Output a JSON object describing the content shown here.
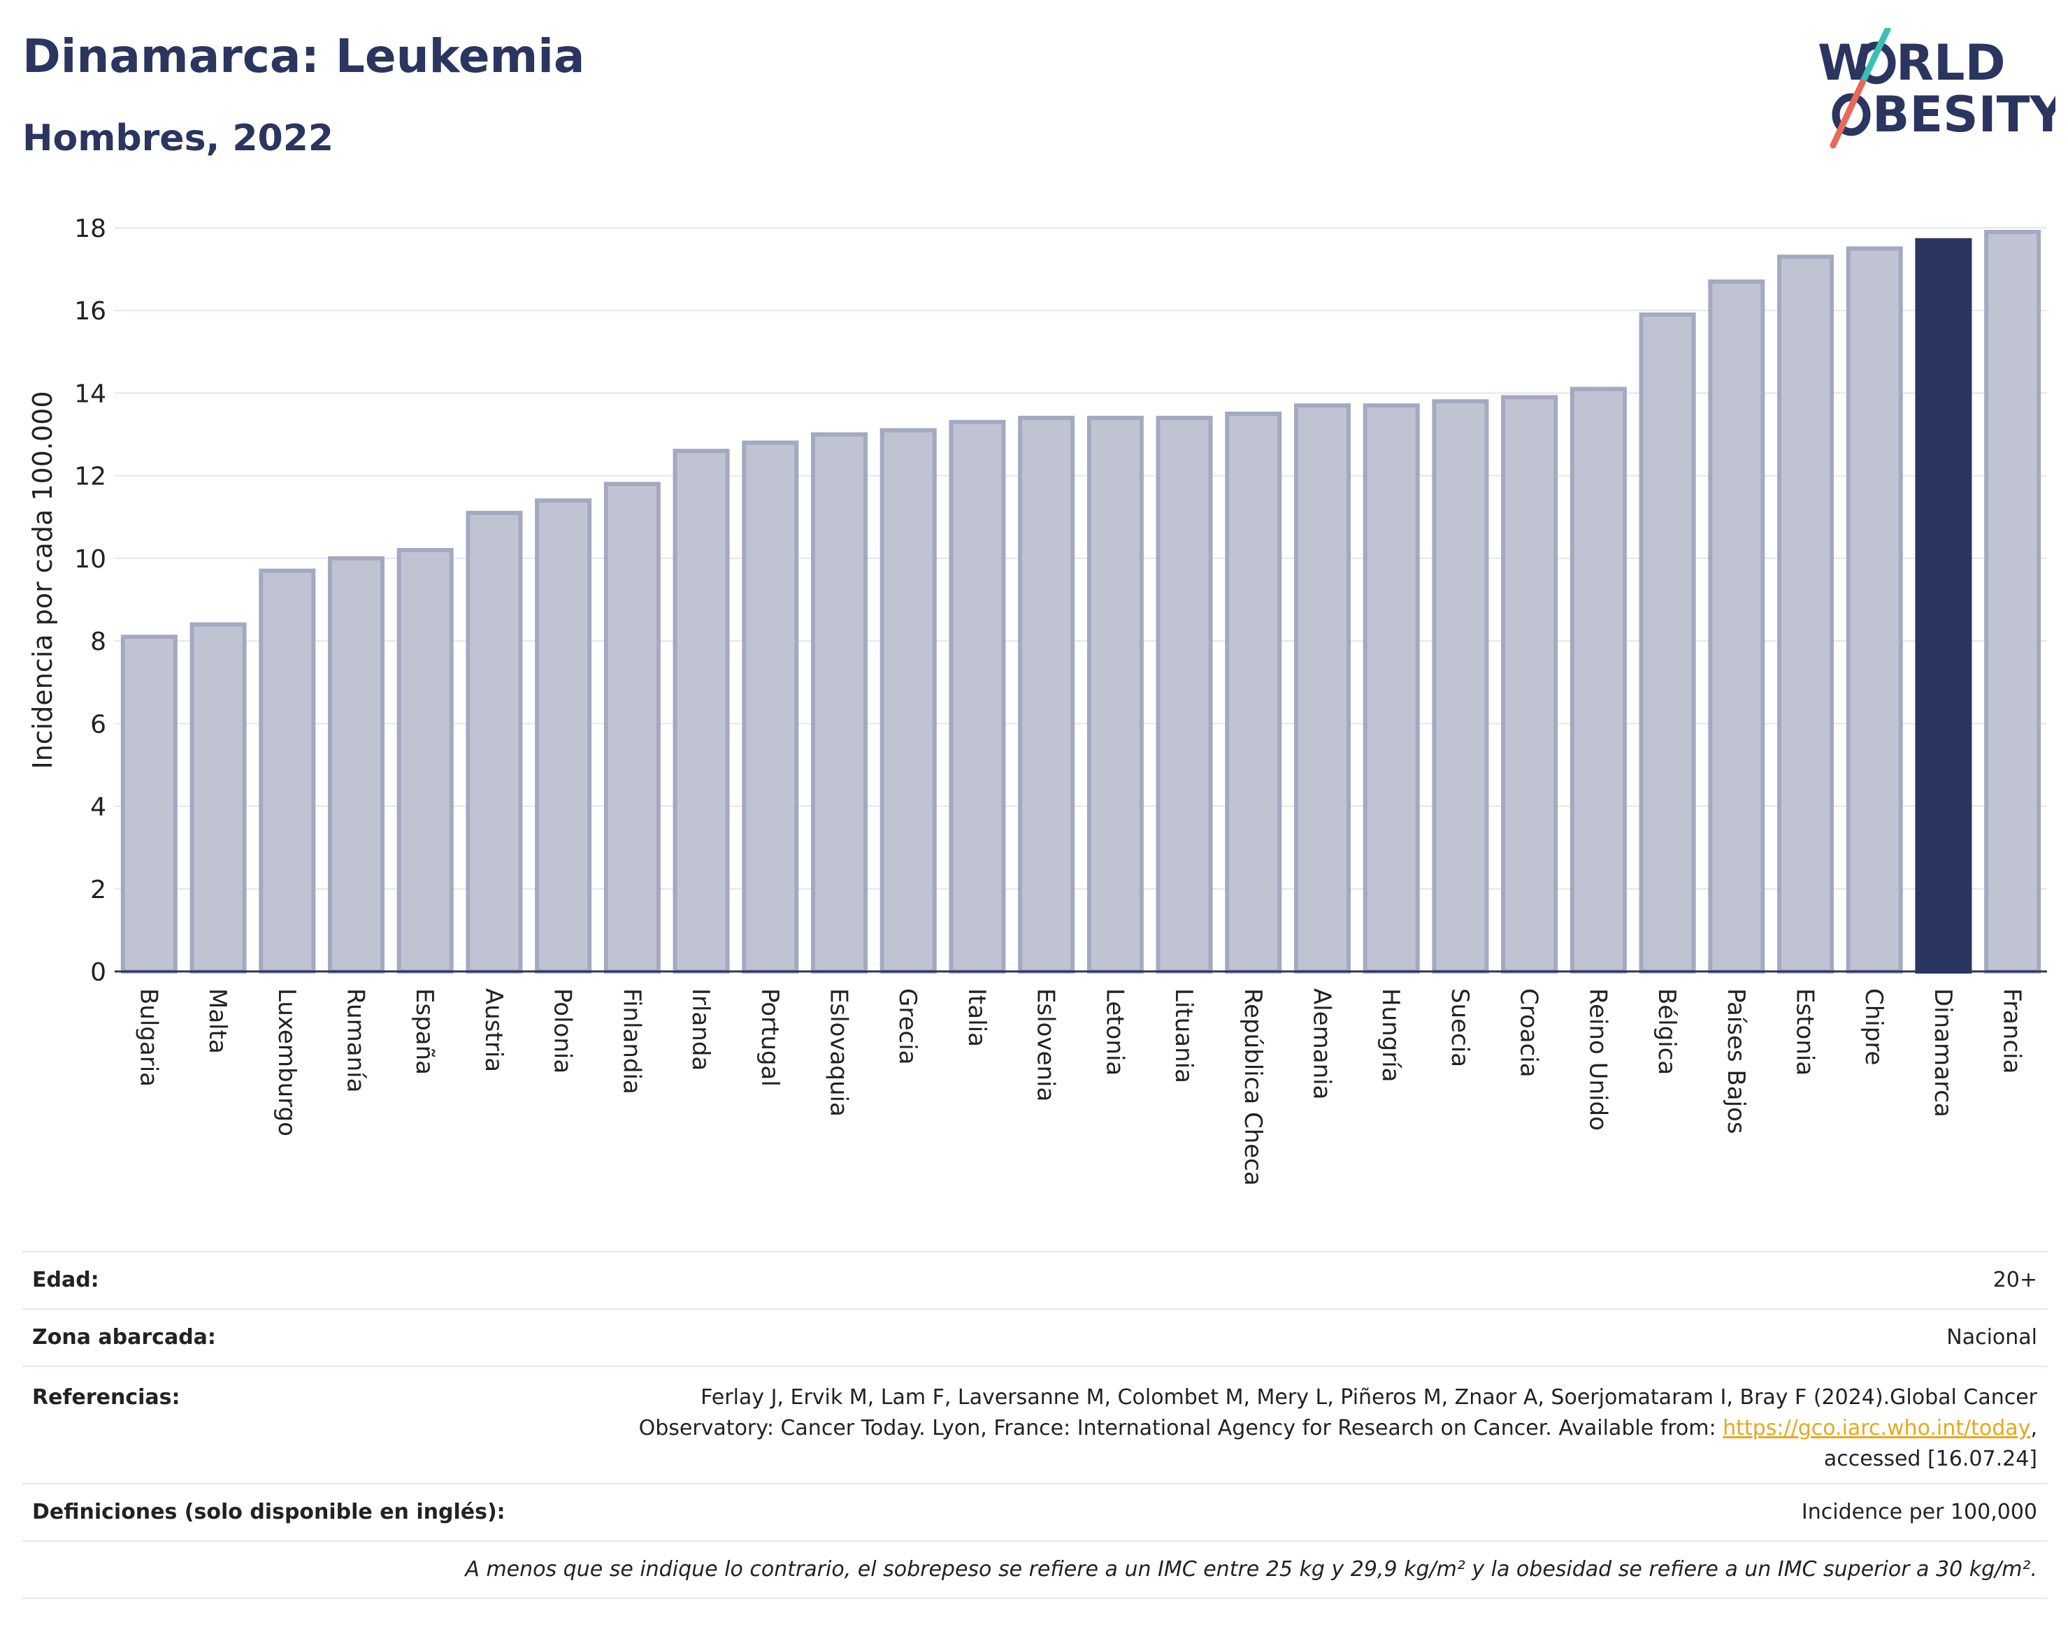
{
  "header": {
    "title": "Dinamarca: Leukemia",
    "subtitle": "Hombres, 2022"
  },
  "logo": {
    "line1": "W",
    "line1b": "RLD",
    "line2b": "BESITY",
    "colors": {
      "navy": "#2a3560",
      "teal": "#3bbfb5",
      "coral": "#e8685a"
    }
  },
  "colors": {
    "bar": "#c0c4d2",
    "bar_border": "#a3a9c0",
    "highlight": "#2a3560",
    "grid": "#e4e6ee",
    "axis_text": "#222222"
  },
  "chart_data": {
    "type": "bar",
    "ylabel": "Incidencia por cada 100.000",
    "ylim": [
      0,
      18
    ],
    "yticks": [
      0,
      2,
      4,
      6,
      8,
      10,
      12,
      14,
      16,
      18
    ],
    "grid": true,
    "highlight": "Dinamarca",
    "categories": [
      "Bulgaria",
      "Malta",
      "Luxemburgo",
      "Rumanía",
      "España",
      "Austria",
      "Polonia",
      "Finlandia",
      "Irlanda",
      "Portugal",
      "Eslovaquia",
      "Grecia",
      "Italia",
      "Eslovenia",
      "Letonia",
      "Lituania",
      "República Checa",
      "Alemania",
      "Hungría",
      "Suecia",
      "Croacia",
      "Reino Unido",
      "Bélgica",
      "Países Bajos",
      "Estonia",
      "Chipre",
      "Dinamarca",
      "Francia"
    ],
    "values": [
      8.1,
      8.4,
      9.7,
      10.0,
      10.2,
      11.1,
      11.4,
      11.8,
      12.6,
      12.8,
      13.0,
      13.1,
      13.3,
      13.4,
      13.4,
      13.4,
      13.5,
      13.7,
      13.7,
      13.8,
      13.9,
      14.1,
      15.9,
      16.7,
      17.3,
      17.5,
      17.7,
      17.9
    ]
  },
  "info": {
    "age_label": "Edad:",
    "age_value": "20+",
    "zone_label": "Zona abarcada:",
    "zone_value": "Nacional",
    "ref_label": "Referencias:",
    "ref_line1": "Ferlay J, Ervik M, Lam F, Laversanne M, Colombet M, Mery L, Piñeros M, Znaor A, Soerjomataram I, Bray F (2024).Global Cancer",
    "ref_line2_pre": "Observatory: Cancer Today. Lyon, France: International Agency for Research on Cancer. Available from: ",
    "ref_link": "https://gco.iarc.who.int/today",
    "ref_line2_post": ",",
    "ref_line3": "accessed [16.07.24]",
    "def_label": "Definiciones (solo disponible en inglés):",
    "def_value": "Incidence per 100,000",
    "footnote": "A menos que se indique lo contrario, el sobrepeso se refiere a un IMC entre 25 kg y 29,9 kg/m² y la obesidad se refiere a un IMC superior a 30 kg/m²."
  }
}
